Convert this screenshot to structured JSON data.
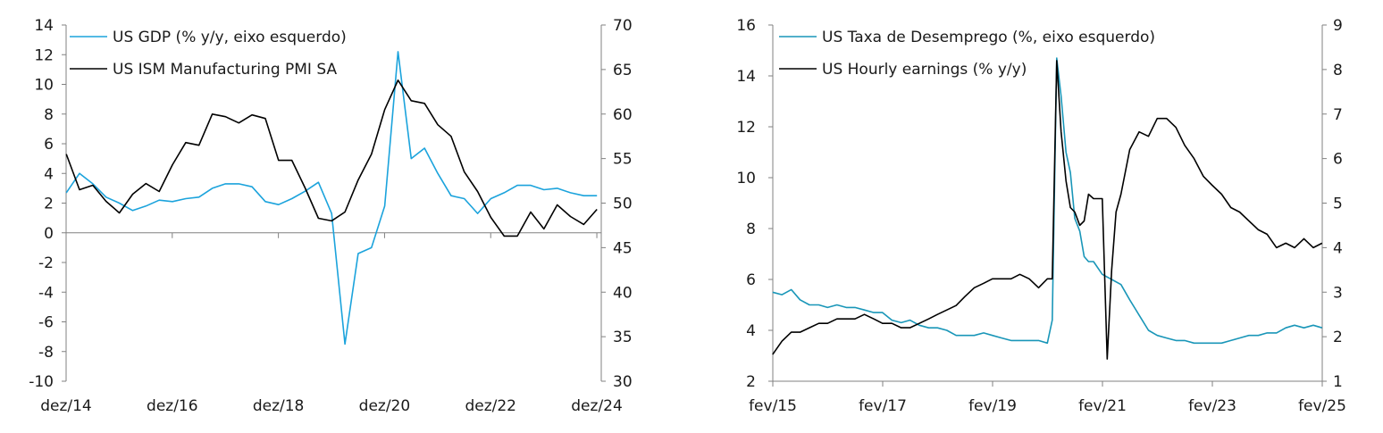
{
  "chart_data": [
    {
      "type": "line",
      "left_axis": {
        "ylim": [
          -10,
          14
        ],
        "ticks": [
          -10,
          -8,
          -6,
          -4,
          -2,
          0,
          2,
          4,
          6,
          8,
          10,
          12,
          14
        ]
      },
      "right_axis": {
        "ylim": [
          30,
          70
        ],
        "ticks": [
          30,
          35,
          40,
          45,
          50,
          55,
          60,
          65,
          70
        ]
      },
      "x_range": [
        2014.9167,
        2025.0
      ],
      "x_tick_values": [
        2014.9167,
        2016.9167,
        2018.9167,
        2020.9167,
        2022.9167,
        2024.9167
      ],
      "x_tick_labels": [
        "dez/14",
        "dez/16",
        "dez/18",
        "dez/20",
        "dez/22",
        "dez/24"
      ],
      "x_axis_at": 0,
      "legend": "top-left",
      "series": [
        {
          "name": "US GDP (% y/y, eixo esquerdo)",
          "axis": "left",
          "color": "#1ba3dc",
          "x": [
            2014.92,
            2015.17,
            2015.42,
            2015.67,
            2015.92,
            2016.17,
            2016.42,
            2016.67,
            2016.92,
            2017.17,
            2017.42,
            2017.67,
            2017.92,
            2018.17,
            2018.42,
            2018.67,
            2018.92,
            2019.17,
            2019.42,
            2019.67,
            2019.92,
            2020.17,
            2020.42,
            2020.67,
            2020.92,
            2021.17,
            2021.42,
            2021.67,
            2021.92,
            2022.17,
            2022.42,
            2022.67,
            2022.92,
            2023.17,
            2023.42,
            2023.67,
            2023.92,
            2024.17,
            2024.42,
            2024.67,
            2024.92
          ],
          "values": [
            2.7,
            4.0,
            3.3,
            2.4,
            2.0,
            1.5,
            1.8,
            2.2,
            2.1,
            2.3,
            2.4,
            3.0,
            3.3,
            3.3,
            3.1,
            2.1,
            1.9,
            2.3,
            2.8,
            3.4,
            1.3,
            -7.5,
            -1.4,
            -1.0,
            1.8,
            12.2,
            5.0,
            5.7,
            4.0,
            2.5,
            2.3,
            1.3,
            2.3,
            2.7,
            3.2,
            3.2,
            2.9,
            3.0,
            2.7,
            2.5,
            2.5
          ]
        },
        {
          "name": "US ISM Manufacturing PMI SA",
          "axis": "right",
          "color": "#000000",
          "x": [
            2014.92,
            2015.17,
            2015.42,
            2015.67,
            2015.92,
            2016.17,
            2016.42,
            2016.67,
            2016.92,
            2017.17,
            2017.42,
            2017.67,
            2017.92,
            2018.17,
            2018.42,
            2018.67,
            2018.92,
            2019.17,
            2019.42,
            2019.67,
            2019.92,
            2020.17,
            2020.42,
            2020.67,
            2020.92,
            2021.17,
            2021.42,
            2021.67,
            2021.92,
            2022.17,
            2022.42,
            2022.67,
            2022.92,
            2023.17,
            2023.42,
            2023.67,
            2023.92,
            2024.17,
            2024.42,
            2024.67,
            2024.92
          ],
          "values": [
            55.5,
            51.5,
            52.0,
            50.2,
            48.9,
            51.0,
            52.2,
            51.3,
            54.3,
            56.8,
            56.5,
            60.0,
            59.7,
            59.0,
            59.9,
            59.5,
            54.8,
            54.8,
            51.7,
            48.3,
            48.0,
            49.0,
            52.6,
            55.5,
            60.5,
            63.8,
            61.5,
            61.2,
            58.8,
            57.5,
            53.5,
            51.3,
            48.4,
            46.3,
            46.3,
            49.0,
            47.1,
            49.8,
            48.5,
            47.6,
            49.3
          ]
        }
      ]
    },
    {
      "type": "line",
      "left_axis": {
        "ylim": [
          2,
          16
        ],
        "ticks": [
          2,
          4,
          6,
          8,
          10,
          12,
          14,
          16
        ]
      },
      "right_axis": {
        "ylim": [
          1,
          9
        ],
        "ticks": [
          1,
          2,
          3,
          4,
          5,
          6,
          7,
          8,
          9
        ]
      },
      "x_range": [
        2015.0833,
        2025.0833
      ],
      "x_tick_values": [
        2015.0833,
        2017.0833,
        2019.0833,
        2021.0833,
        2023.0833,
        2025.0833
      ],
      "x_tick_labels": [
        "fev/15",
        "fev/17",
        "fev/19",
        "fev/21",
        "fev/23",
        "fev/25"
      ],
      "x_axis_at": 2,
      "legend": "top-left",
      "series": [
        {
          "name": "US Taxa de Desemprego (%, eixo esquerdo)",
          "axis": "left",
          "color": "#1996b8",
          "x": [
            2015.08,
            2015.25,
            2015.42,
            2015.58,
            2015.75,
            2015.92,
            2016.08,
            2016.25,
            2016.42,
            2016.58,
            2016.75,
            2016.92,
            2017.08,
            2017.25,
            2017.42,
            2017.58,
            2017.75,
            2017.92,
            2018.08,
            2018.25,
            2018.42,
            2018.58,
            2018.75,
            2018.92,
            2019.08,
            2019.25,
            2019.42,
            2019.58,
            2019.75,
            2019.92,
            2020.08,
            2020.17,
            2020.25,
            2020.33,
            2020.42,
            2020.5,
            2020.58,
            2020.67,
            2020.75,
            2020.83,
            2020.92,
            2021.08,
            2021.25,
            2021.42,
            2021.58,
            2021.75,
            2021.92,
            2022.08,
            2022.25,
            2022.42,
            2022.58,
            2022.75,
            2022.92,
            2023.08,
            2023.25,
            2023.42,
            2023.58,
            2023.75,
            2023.92,
            2024.08,
            2024.25,
            2024.42,
            2024.58,
            2024.75,
            2024.92,
            2025.08
          ],
          "values": [
            5.5,
            5.4,
            5.6,
            5.2,
            5.0,
            5.0,
            4.9,
            5.0,
            4.9,
            4.9,
            4.8,
            4.7,
            4.7,
            4.4,
            4.3,
            4.4,
            4.2,
            4.1,
            4.1,
            4.0,
            3.8,
            3.8,
            3.8,
            3.9,
            3.8,
            3.7,
            3.6,
            3.6,
            3.6,
            3.6,
            3.5,
            4.4,
            14.7,
            13.2,
            11.0,
            10.2,
            8.4,
            7.9,
            6.9,
            6.7,
            6.7,
            6.2,
            6.0,
            5.8,
            5.2,
            4.6,
            4.0,
            3.8,
            3.7,
            3.6,
            3.6,
            3.5,
            3.5,
            3.5,
            3.5,
            3.6,
            3.7,
            3.8,
            3.8,
            3.9,
            3.9,
            4.1,
            4.2,
            4.1,
            4.2,
            4.1
          ]
        },
        {
          "name": "US Hourly earnings (% y/y)",
          "axis": "right",
          "color": "#000000",
          "x": [
            2015.08,
            2015.25,
            2015.42,
            2015.58,
            2015.75,
            2015.92,
            2016.08,
            2016.25,
            2016.42,
            2016.58,
            2016.75,
            2016.92,
            2017.08,
            2017.25,
            2017.42,
            2017.58,
            2017.75,
            2017.92,
            2018.08,
            2018.25,
            2018.42,
            2018.58,
            2018.75,
            2018.92,
            2019.08,
            2019.25,
            2019.42,
            2019.58,
            2019.75,
            2019.92,
            2020.08,
            2020.17,
            2020.25,
            2020.33,
            2020.42,
            2020.5,
            2020.58,
            2020.67,
            2020.75,
            2020.83,
            2020.92,
            2021.08,
            2021.17,
            2021.25,
            2021.33,
            2021.42,
            2021.58,
            2021.75,
            2021.92,
            2022.08,
            2022.25,
            2022.42,
            2022.58,
            2022.75,
            2022.92,
            2023.08,
            2023.25,
            2023.42,
            2023.58,
            2023.75,
            2023.92,
            2024.08,
            2024.25,
            2024.42,
            2024.58,
            2024.75,
            2024.92,
            2025.08
          ],
          "values": [
            1.6,
            1.9,
            2.1,
            2.1,
            2.2,
            2.3,
            2.3,
            2.4,
            2.4,
            2.4,
            2.5,
            2.4,
            2.3,
            2.3,
            2.2,
            2.2,
            2.3,
            2.4,
            2.5,
            2.6,
            2.7,
            2.9,
            3.1,
            3.2,
            3.3,
            3.3,
            3.3,
            3.4,
            3.3,
            3.1,
            3.3,
            3.3,
            8.2,
            6.6,
            5.5,
            4.9,
            4.8,
            4.5,
            4.6,
            5.2,
            5.1,
            5.1,
            1.5,
            3.5,
            4.8,
            5.2,
            6.2,
            6.6,
            6.5,
            6.9,
            6.9,
            6.7,
            6.3,
            6.0,
            5.6,
            5.4,
            5.2,
            4.9,
            4.8,
            4.6,
            4.4,
            4.3,
            4.0,
            4.1,
            4.0,
            4.2,
            4.0,
            4.1
          ]
        }
      ]
    }
  ]
}
